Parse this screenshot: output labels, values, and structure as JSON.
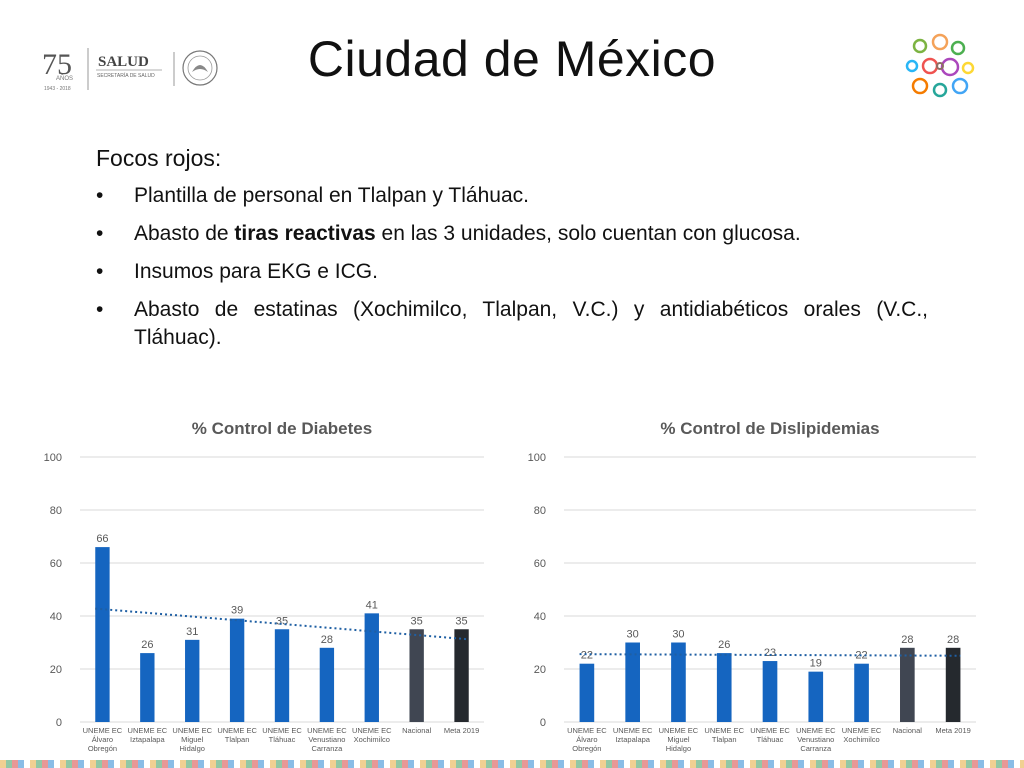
{
  "header": {
    "title": "Ciudad de México",
    "logo": {
      "anniversary_number": "75",
      "anniversary_sub": "AÑOS",
      "years": "1943 - 2018",
      "agency": "SALUD",
      "agency_sub": "SECRETARÍA DE SALUD"
    }
  },
  "content": {
    "lead": "Focos rojos:",
    "bullet_symbol": "•",
    "bullets": [
      [
        {
          "t": "Plantilla de personal en Tlalpan y Tláhuac.",
          "b": false
        }
      ],
      [
        {
          "t": "Abasto de ",
          "b": false
        },
        {
          "t": "tiras reactivas",
          "b": true
        },
        {
          "t": " en las 3 unidades, solo cuentan con glucosa.",
          "b": false
        }
      ],
      [
        {
          "t": "Insumos para EKG e ICG.",
          "b": false
        }
      ],
      [
        {
          "t": "Abasto de estatinas (Xochimilco, Tlalpan, V.C.) y antidiabéticos orales (V.C., Tláhuac).",
          "b": false
        }
      ]
    ]
  },
  "colors": {
    "bar_blue": "#1565C0",
    "bar_dark_gray": "#404652",
    "bar_black": "#25292e",
    "trendline": "#1f5fa3",
    "grid": "#d9d9d9",
    "title_gray": "#595959"
  },
  "chart_data": [
    {
      "type": "bar",
      "title": "% Control de Diabetes",
      "categories": [
        [
          "UNEME EC",
          "Álvaro",
          "Obregón"
        ],
        [
          "UNEME EC",
          "Iztapalapa"
        ],
        [
          "UNEME EC",
          "Miguel",
          "Hidalgo"
        ],
        [
          "UNEME EC",
          "Tlalpan"
        ],
        [
          "UNEME EC",
          "Tláhuac"
        ],
        [
          "UNEME EC",
          "Venustiano",
          "Carranza"
        ],
        [
          "UNEME EC",
          "Xochimilco"
        ],
        [
          "Nacional"
        ],
        [
          "Meta 2019"
        ]
      ],
      "values": [
        66,
        26,
        31,
        39,
        35,
        28,
        41,
        35,
        35
      ],
      "bar_colors": [
        "#1565C0",
        "#1565C0",
        "#1565C0",
        "#1565C0",
        "#1565C0",
        "#1565C0",
        "#1565C0",
        "#404652",
        "#25292e"
      ],
      "ylim": [
        0,
        100
      ],
      "yticks": [
        0,
        20,
        40,
        60,
        80,
        100
      ],
      "trendline": {
        "style": "dotted",
        "start": 42.8,
        "end": 31.2
      },
      "grid": true
    },
    {
      "type": "bar",
      "title": "% Control de Dislipidemias",
      "categories": [
        [
          "UNEME EC",
          "Álvaro",
          "Obregón"
        ],
        [
          "UNEME EC",
          "Iztapalapa"
        ],
        [
          "UNEME EC",
          "Miguel",
          "Hidalgo"
        ],
        [
          "UNEME EC",
          "Tlalpan"
        ],
        [
          "UNEME EC",
          "Tláhuac"
        ],
        [
          "UNEME EC",
          "Venustiano",
          "Carranza"
        ],
        [
          "UNEME EC",
          "Xochimilco"
        ],
        [
          "Nacional"
        ],
        [
          "Meta 2019"
        ]
      ],
      "values": [
        22,
        30,
        30,
        26,
        23,
        19,
        22,
        28,
        28
      ],
      "bar_colors": [
        "#1565C0",
        "#1565C0",
        "#1565C0",
        "#1565C0",
        "#1565C0",
        "#1565C0",
        "#1565C0",
        "#404652",
        "#25292e"
      ],
      "ylim": [
        0,
        100
      ],
      "yticks": [
        0,
        20,
        40,
        60,
        80,
        100
      ],
      "trendline": {
        "style": "dotted",
        "start": 25.6,
        "end": 25.0
      },
      "grid": true
    }
  ]
}
